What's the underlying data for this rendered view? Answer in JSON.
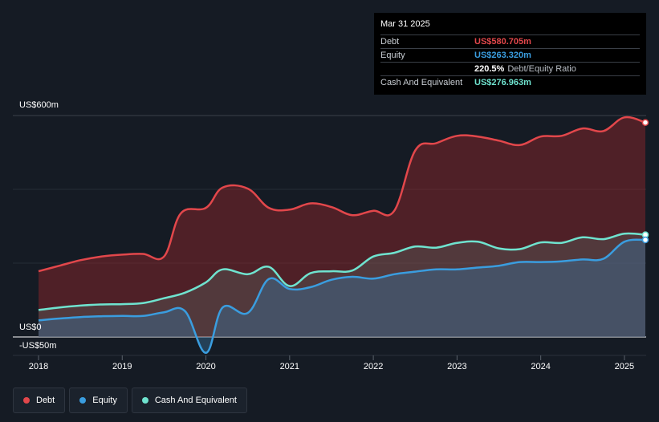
{
  "chart_data": {
    "type": "area",
    "y_axis_labels": {
      "top": "US$600m",
      "zero": "US$0",
      "bottom": "-US$50m"
    },
    "ylim": [
      -50,
      600
    ],
    "xlim": [
      2018.0,
      2025.25
    ],
    "x_ticks": [
      "2018",
      "2019",
      "2020",
      "2021",
      "2022",
      "2023",
      "2024",
      "2025"
    ],
    "grid": true,
    "series": [
      {
        "name": "Debt",
        "color": "#e2474b",
        "points": [
          [
            2018.0,
            178
          ],
          [
            2018.25,
            193
          ],
          [
            2018.5,
            208
          ],
          [
            2018.75,
            218
          ],
          [
            2019.0,
            223
          ],
          [
            2019.25,
            225
          ],
          [
            2019.5,
            218
          ],
          [
            2019.7,
            335
          ],
          [
            2020.0,
            350
          ],
          [
            2020.2,
            405
          ],
          [
            2020.5,
            402
          ],
          [
            2020.75,
            350
          ],
          [
            2021.0,
            345
          ],
          [
            2021.25,
            362
          ],
          [
            2021.5,
            352
          ],
          [
            2021.75,
            330
          ],
          [
            2022.0,
            342
          ],
          [
            2022.25,
            342
          ],
          [
            2022.5,
            505
          ],
          [
            2022.75,
            525
          ],
          [
            2023.0,
            545
          ],
          [
            2023.25,
            543
          ],
          [
            2023.5,
            532
          ],
          [
            2023.75,
            520
          ],
          [
            2024.0,
            543
          ],
          [
            2024.25,
            545
          ],
          [
            2024.5,
            565
          ],
          [
            2024.75,
            558
          ],
          [
            2025.0,
            595
          ],
          [
            2025.25,
            581
          ]
        ]
      },
      {
        "name": "Equity",
        "color": "#3a9ddf",
        "points": [
          [
            2018.0,
            45
          ],
          [
            2018.25,
            50
          ],
          [
            2018.5,
            54
          ],
          [
            2018.75,
            56
          ],
          [
            2019.0,
            57
          ],
          [
            2019.25,
            57
          ],
          [
            2019.5,
            67
          ],
          [
            2019.75,
            70
          ],
          [
            2020.0,
            -43
          ],
          [
            2020.2,
            80
          ],
          [
            2020.5,
            65
          ],
          [
            2020.75,
            157
          ],
          [
            2021.0,
            130
          ],
          [
            2021.25,
            135
          ],
          [
            2021.5,
            155
          ],
          [
            2021.75,
            163
          ],
          [
            2022.0,
            158
          ],
          [
            2022.25,
            170
          ],
          [
            2022.5,
            177
          ],
          [
            2022.75,
            183
          ],
          [
            2023.0,
            183
          ],
          [
            2023.25,
            188
          ],
          [
            2023.5,
            193
          ],
          [
            2023.75,
            203
          ],
          [
            2024.0,
            203
          ],
          [
            2024.25,
            205
          ],
          [
            2024.5,
            210
          ],
          [
            2024.75,
            212
          ],
          [
            2025.0,
            258
          ],
          [
            2025.25,
            263
          ]
        ]
      },
      {
        "name": "Cash And Equivalent",
        "color": "#6fe3cf",
        "points": [
          [
            2018.0,
            73
          ],
          [
            2018.25,
            80
          ],
          [
            2018.5,
            85
          ],
          [
            2018.75,
            88
          ],
          [
            2019.0,
            89
          ],
          [
            2019.25,
            92
          ],
          [
            2019.5,
            105
          ],
          [
            2019.75,
            120
          ],
          [
            2020.0,
            148
          ],
          [
            2020.2,
            183
          ],
          [
            2020.5,
            170
          ],
          [
            2020.75,
            190
          ],
          [
            2021.0,
            138
          ],
          [
            2021.25,
            173
          ],
          [
            2021.5,
            178
          ],
          [
            2021.75,
            180
          ],
          [
            2022.0,
            218
          ],
          [
            2022.25,
            228
          ],
          [
            2022.5,
            245
          ],
          [
            2022.75,
            242
          ],
          [
            2023.0,
            255
          ],
          [
            2023.25,
            258
          ],
          [
            2023.5,
            240
          ],
          [
            2023.75,
            238
          ],
          [
            2024.0,
            256
          ],
          [
            2024.25,
            255
          ],
          [
            2024.5,
            270
          ],
          [
            2024.75,
            265
          ],
          [
            2025.0,
            280
          ],
          [
            2025.25,
            277
          ]
        ]
      }
    ],
    "legend": [
      "Debt",
      "Equity",
      "Cash And Equivalent"
    ],
    "legend_position": "bottom-left"
  },
  "tooltip": {
    "date": "Mar 31 2025",
    "debt_label": "Debt",
    "debt_value": "US$580.705m",
    "equity_label": "Equity",
    "equity_value": "US$263.320m",
    "ratio_value": "220.5%",
    "ratio_label": "Debt/Equity Ratio",
    "cash_label": "Cash And Equivalent",
    "cash_value": "US$276.963m"
  },
  "colors": {
    "background": "#151b24",
    "debt": "#e2474b",
    "equity": "#3a9ddf",
    "cash": "#6fe3cf"
  }
}
